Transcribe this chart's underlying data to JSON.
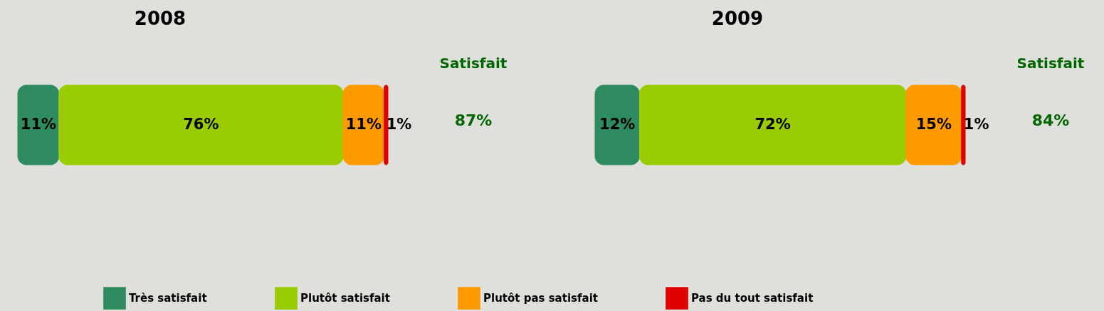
{
  "chart_data": [
    {
      "type": "bar",
      "title": "2008",
      "orientation": "horizontal",
      "stacked": true,
      "categories": [
        null
      ],
      "tick_labels": false,
      "legend": "bottom",
      "series": [
        {
          "name": "Très satisfait",
          "color": "#2e8b5f",
          "values": [
            11
          ],
          "value_labels": [
            "11%"
          ]
        },
        {
          "name": "Plutôt satisfait",
          "color": "#99cc00",
          "values": [
            76
          ],
          "value_labels": [
            "76%"
          ]
        },
        {
          "name": "Plutôt pas satisfait",
          "color": "#ff9900",
          "values": [
            11
          ],
          "value_labels": [
            "11%"
          ]
        },
        {
          "name": "Pas du tout satisfait",
          "color": "#e00000",
          "values": [
            1
          ],
          "value_labels": [
            "1%"
          ]
        }
      ],
      "annotations": [
        "Satisfait",
        "87%"
      ]
    },
    {
      "type": "bar",
      "title": "2009",
      "orientation": "horizontal",
      "stacked": true,
      "categories": [
        null
      ],
      "tick_labels": false,
      "legend": "bottom",
      "series": [
        {
          "name": "Très satisfait",
          "color": "#2e8b5f",
          "values": [
            12
          ],
          "value_labels": [
            "12%"
          ]
        },
        {
          "name": "Plutôt satisfait",
          "color": "#99cc00",
          "values": [
            72
          ],
          "value_labels": [
            "72%"
          ]
        },
        {
          "name": "Plutôt pas satisfait",
          "color": "#ff9900",
          "values": [
            15
          ],
          "value_labels": [
            "15%"
          ]
        },
        {
          "name": "Pas du tout satisfait",
          "color": "#e00000",
          "values": [
            1
          ],
          "value_labels": [
            "1%"
          ]
        }
      ],
      "annotations": [
        "Satisfait",
        "84%"
      ]
    }
  ]
}
